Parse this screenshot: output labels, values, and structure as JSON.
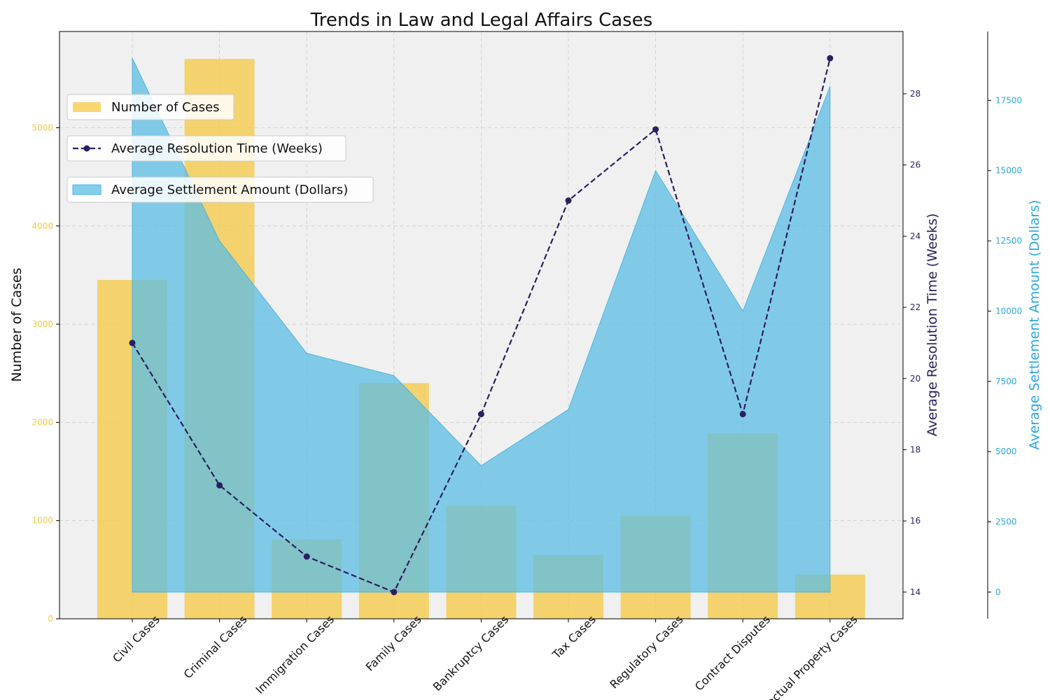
{
  "chart_data": {
    "type": "bar",
    "title": "Trends in Law and Legal Affairs Cases",
    "categories": [
      "Civil Cases",
      "Criminal Cases",
      "Immigration Cases",
      "Family Cases",
      "Bankruptcy Cases",
      "Tax Cases",
      "Regulatory Cases",
      "Contract Disputes",
      "Intellectual Property Cases"
    ],
    "series": [
      {
        "name": "Number of Cases",
        "kind": "bar",
        "axis": "left",
        "color": "#F5C842",
        "values": [
          3450,
          5700,
          810,
          2400,
          1150,
          650,
          1050,
          1890,
          450
        ]
      },
      {
        "name": "Average Resolution Time (Weeks)",
        "kind": "line",
        "axis": "right1",
        "color": "#2A2060",
        "values": [
          21,
          17,
          15,
          14,
          19,
          25,
          27,
          19,
          29
        ]
      },
      {
        "name": "Average Settlement Amount (Dollars)",
        "kind": "area",
        "axis": "right2",
        "color": "#5BBEE6",
        "values": [
          19000,
          12500,
          8500,
          7700,
          4500,
          6500,
          15000,
          10000,
          18000
        ]
      }
    ],
    "axes": {
      "left": {
        "label": "Number of Cases",
        "ylim": [
          0,
          5980
        ],
        "ticks": [
          0,
          1000,
          2000,
          3000,
          4000,
          5000
        ],
        "tick_color": "#F5C842"
      },
      "right1": {
        "label": "Average Resolution Time (Weeks)",
        "ylim": [
          13.25,
          29.75
        ],
        "ticks": [
          14,
          16,
          18,
          20,
          22,
          24,
          26,
          28
        ],
        "tick_color": "#2A2060"
      },
      "right2": {
        "label": "Average Settlement Amount (Dollars)",
        "ylim": [
          -950,
          19950
        ],
        "ticks": [
          0,
          2500,
          5000,
          7500,
          10000,
          12500,
          15000,
          17500
        ],
        "tick_color": "#29A9DF"
      }
    },
    "grid": true,
    "legend_placement": "upper-left"
  }
}
